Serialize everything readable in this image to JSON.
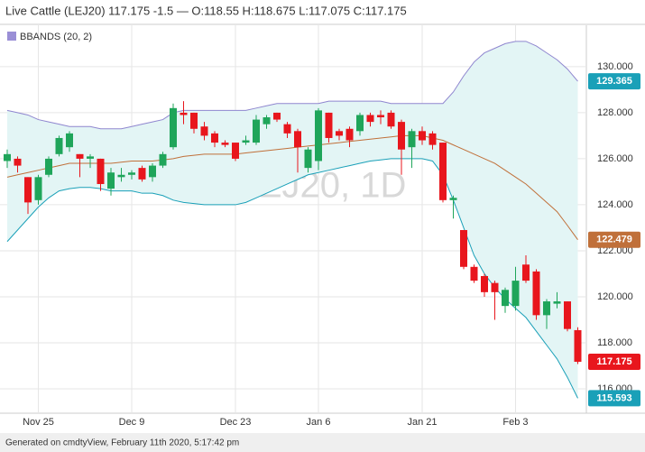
{
  "chart_data": {
    "type": "candlestick",
    "title": "Live Cattle (LEJ20) 117.175 -1.5 — O:118.55 H:118.675 L:117.075 C:117.175",
    "watermark": "LEJ20, 1D",
    "footer": "Generated on cmdtyView, February 11th 2020, 5:17:42 pm",
    "categories": [
      null,
      null,
      null,
      "Nov 25",
      null,
      null,
      null,
      null,
      null,
      null,
      null,
      null,
      "Dec 9",
      null,
      null,
      null,
      null,
      null,
      null,
      null,
      null,
      null,
      "Dec 23",
      null,
      null,
      null,
      null,
      null,
      null,
      null,
      "Jan 6",
      null,
      null,
      null,
      null,
      null,
      null,
      null,
      null,
      null,
      "Jan 21",
      null,
      null,
      null,
      null,
      null,
      null,
      null,
      null,
      "Feb 3",
      null,
      null,
      null,
      null,
      null,
      null
    ],
    "open": [
      125.9,
      126.0,
      125.2,
      124.2,
      125.3,
      126.2,
      126.5,
      126.2,
      126.0,
      126.0,
      124.7,
      125.2,
      125.3,
      125.6,
      125.2,
      125.7,
      126.5,
      128.0,
      128.0,
      127.4,
      127.1,
      126.7,
      126.7,
      126.7,
      126.7,
      127.5,
      128.0,
      127.5,
      127.2,
      125.6,
      125.9,
      128.0,
      127.2,
      127.3,
      127.2,
      127.9,
      127.9,
      128.0,
      127.6,
      126.5,
      127.2,
      127.1,
      126.7,
      124.2,
      122.9,
      121.3,
      120.9,
      120.6,
      119.6,
      119.6,
      121.4,
      121.1,
      119.2,
      119.7,
      119.8,
      118.55
    ],
    "high": [
      126.4,
      126.1,
      125.2,
      125.3,
      126.1,
      127.0,
      127.2,
      126.2,
      126.2,
      126.0,
      125.6,
      125.6,
      125.5,
      125.7,
      125.8,
      126.3,
      128.4,
      128.5,
      128.0,
      127.6,
      127.2,
      126.8,
      126.7,
      127.0,
      127.9,
      127.9,
      128.0,
      127.6,
      127.3,
      126.5,
      128.2,
      128.0,
      127.3,
      127.4,
      128.0,
      128.0,
      128.1,
      128.1,
      127.7,
      127.3,
      127.4,
      127.2,
      126.7,
      124.4,
      122.9,
      121.4,
      121.0,
      120.7,
      120.4,
      121.3,
      121.8,
      121.2,
      119.9,
      120.2,
      119.8,
      118.675
    ],
    "low": [
      125.6,
      125.4,
      123.6,
      124.0,
      125.2,
      126.1,
      126.3,
      125.2,
      125.6,
      124.6,
      124.4,
      125.0,
      125.1,
      125.0,
      125.0,
      125.6,
      126.4,
      127.5,
      127.1,
      126.8,
      126.5,
      126.5,
      125.9,
      126.6,
      126.6,
      127.3,
      127.6,
      126.9,
      125.4,
      125.4,
      125.5,
      126.7,
      126.8,
      126.5,
      127.0,
      127.4,
      127.5,
      127.3,
      125.3,
      125.6,
      126.6,
      126.4,
      124.1,
      123.4,
      121.2,
      120.6,
      120.0,
      119.0,
      119.3,
      119.4,
      120.6,
      119.0,
      118.6,
      119.5,
      118.5,
      117.075
    ],
    "close": [
      126.2,
      125.7,
      124.1,
      125.2,
      126.0,
      126.9,
      127.1,
      126.0,
      126.1,
      124.9,
      125.4,
      125.3,
      125.4,
      125.1,
      125.7,
      126.2,
      128.2,
      127.9,
      127.3,
      127.0,
      126.7,
      126.6,
      126.0,
      126.8,
      127.7,
      127.8,
      127.7,
      127.1,
      126.5,
      126.4,
      128.1,
      126.9,
      127.0,
      126.8,
      127.9,
      127.6,
      127.8,
      127.4,
      126.4,
      127.2,
      126.8,
      126.6,
      124.2,
      124.3,
      121.3,
      120.7,
      120.2,
      120.2,
      120.3,
      120.7,
      120.7,
      119.2,
      119.8,
      119.8,
      118.6,
      117.175
    ],
    "up_color": "#1fa55a",
    "down_color": "#e8161d",
    "indicator": {
      "name": "BBANDS (20, 2)",
      "color": "#9a8fd6",
      "fill": "#e3f5f5",
      "upper_color": "#8f86cf",
      "middle_color": "#c0703a",
      "lower_color": "#1aa0b8",
      "upper": [
        128.1,
        128.0,
        127.9,
        127.7,
        127.6,
        127.5,
        127.4,
        127.4,
        127.4,
        127.3,
        127.3,
        127.3,
        127.4,
        127.5,
        127.6,
        127.7,
        128.0,
        128.1,
        128.1,
        128.1,
        128.1,
        128.1,
        128.1,
        128.1,
        128.2,
        128.3,
        128.4,
        128.4,
        128.4,
        128.4,
        128.4,
        128.5,
        128.5,
        128.5,
        128.5,
        128.5,
        128.5,
        128.4,
        128.4,
        128.4,
        128.4,
        128.4,
        128.4,
        128.9,
        129.6,
        130.2,
        130.6,
        130.8,
        131.0,
        131.1,
        131.1,
        130.9,
        130.6,
        130.3,
        129.9,
        129.365
      ],
      "middle": [
        125.2,
        125.3,
        125.4,
        125.5,
        125.6,
        125.7,
        125.8,
        125.8,
        125.8,
        125.8,
        125.8,
        125.85,
        125.9,
        125.9,
        125.9,
        125.95,
        126.0,
        126.1,
        126.15,
        126.2,
        126.2,
        126.2,
        126.2,
        126.25,
        126.3,
        126.35,
        126.4,
        126.45,
        126.5,
        126.55,
        126.6,
        126.65,
        126.7,
        126.75,
        126.8,
        126.85,
        126.9,
        126.95,
        127.0,
        127.0,
        127.0,
        126.9,
        126.8,
        126.6,
        126.4,
        126.2,
        126.0,
        125.8,
        125.5,
        125.2,
        124.9,
        124.5,
        124.1,
        123.7,
        123.1,
        122.479
      ],
      "lower": [
        122.4,
        122.9,
        123.4,
        123.9,
        124.3,
        124.6,
        124.7,
        124.75,
        124.75,
        124.7,
        124.6,
        124.6,
        124.6,
        124.5,
        124.5,
        124.4,
        124.2,
        124.1,
        124.05,
        124.0,
        124.0,
        124.0,
        124.0,
        124.1,
        124.3,
        124.5,
        124.7,
        124.9,
        125.1,
        125.3,
        125.4,
        125.5,
        125.6,
        125.7,
        125.8,
        125.9,
        125.95,
        126.0,
        126.0,
        126.0,
        126.0,
        125.9,
        125.3,
        124.2,
        123.0,
        121.8,
        121.0,
        120.4,
        119.9,
        119.5,
        119.1,
        118.5,
        117.9,
        117.3,
        116.5,
        115.593
      ]
    },
    "ylim": [
      114.94,
      131.8
    ],
    "yticks": [
      {
        "value": 116,
        "label": "116.000"
      },
      {
        "value": 118,
        "label": "118.000"
      },
      {
        "value": 120,
        "label": "120.000"
      },
      {
        "value": 122,
        "label": "122.000"
      },
      {
        "value": 124,
        "label": "124.000"
      },
      {
        "value": 126,
        "label": "126.000"
      },
      {
        "value": 128,
        "label": "128.000"
      },
      {
        "value": 130,
        "label": "130.000"
      }
    ],
    "grid": true
  }
}
